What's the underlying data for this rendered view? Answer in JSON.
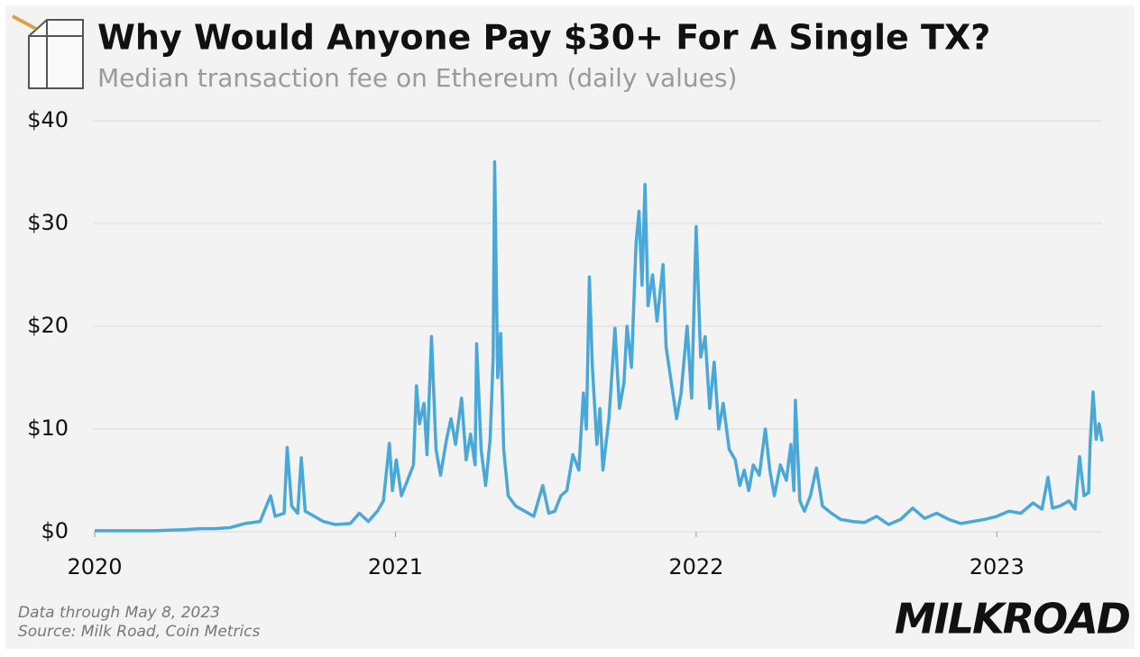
{
  "chart_data": {
    "type": "line",
    "title": "Why Would Anyone Pay $30+ For A Single TX?",
    "subtitle": "Median transaction fee on Ethereum (daily values)",
    "notes": [
      "Data through May 8, 2023",
      "Source: Milk Road, Coin Metrics"
    ],
    "brand": "MILKROAD",
    "xlim": [
      2020,
      2023.35
    ],
    "xticks": [
      2020,
      2021,
      2022,
      2023
    ],
    "ylim": [
      0,
      40
    ],
    "yticks": [
      {
        "value": 0,
        "label": "$0"
      },
      {
        "value": 10,
        "label": "$10"
      },
      {
        "value": 20,
        "label": "$20"
      },
      {
        "value": 30,
        "label": "$30"
      },
      {
        "value": 40,
        "label": "$40"
      }
    ],
    "grid": true,
    "x": [
      2020.0,
      2020.05,
      2020.1,
      2020.15,
      2020.2,
      2020.25,
      2020.3,
      2020.35,
      2020.4,
      2020.45,
      2020.5,
      2020.55,
      2020.585,
      2020.6,
      2020.63,
      2020.64,
      2020.655,
      2020.675,
      2020.687,
      2020.7,
      2020.73,
      2020.76,
      2020.8,
      2020.85,
      2020.88,
      2020.91,
      2020.94,
      2020.96,
      2020.98,
      2020.99,
      2021.003,
      2021.02,
      2021.04,
      2021.06,
      2021.07,
      2021.08,
      2021.095,
      2021.105,
      2021.12,
      2021.135,
      2021.15,
      2021.17,
      2021.185,
      2021.2,
      2021.22,
      2021.235,
      2021.25,
      2021.265,
      2021.27,
      2021.285,
      2021.3,
      2021.315,
      2021.325,
      2021.33,
      2021.34,
      2021.35,
      2021.36,
      2021.375,
      2021.4,
      2021.43,
      2021.46,
      2021.49,
      2021.51,
      2021.53,
      2021.55,
      2021.57,
      2021.59,
      2021.61,
      2021.625,
      2021.635,
      2021.645,
      2021.655,
      2021.67,
      2021.68,
      2021.69,
      2021.71,
      2021.73,
      2021.745,
      2021.76,
      2021.77,
      2021.785,
      2021.8,
      2021.81,
      2021.82,
      2021.83,
      2021.84,
      2021.855,
      2021.87,
      2021.89,
      2021.9,
      2021.92,
      2021.935,
      2021.95,
      2021.97,
      2021.985,
      2022.0,
      2022.015,
      2022.03,
      2022.045,
      2022.06,
      2022.075,
      2022.09,
      2022.11,
      2022.13,
      2022.145,
      2022.16,
      2022.175,
      2022.19,
      2022.21,
      2022.23,
      2022.245,
      2022.26,
      2022.28,
      2022.3,
      2022.315,
      2022.325,
      2022.33,
      2022.345,
      2022.36,
      2022.38,
      2022.4,
      2022.42,
      2022.45,
      2022.48,
      2022.52,
      2022.56,
      2022.6,
      2022.64,
      2022.68,
      2022.72,
      2022.76,
      2022.8,
      2022.84,
      2022.88,
      2022.92,
      2022.96,
      2023.0,
      2023.04,
      2023.08,
      2023.12,
      2023.15,
      2023.17,
      2023.185,
      2023.21,
      2023.24,
      2023.26,
      2023.275,
      2023.29,
      2023.305,
      2023.31,
      2023.32,
      2023.33,
      2023.34,
      2023.35
    ],
    "series": [
      {
        "name": "Median transaction fee",
        "color": "#4aa8d8",
        "values": [
          0.1,
          0.1,
          0.1,
          0.1,
          0.1,
          0.15,
          0.2,
          0.3,
          0.3,
          0.4,
          0.8,
          1.0,
          3.5,
          1.5,
          1.8,
          8.2,
          2.5,
          1.8,
          7.2,
          2.0,
          1.5,
          1.0,
          0.7,
          0.8,
          1.8,
          1.0,
          2.0,
          3.0,
          8.6,
          4.0,
          7.0,
          3.5,
          5.0,
          6.5,
          14.2,
          10.5,
          12.5,
          7.5,
          19.0,
          8.0,
          5.5,
          9.0,
          11.0,
          8.5,
          13.0,
          7.0,
          9.5,
          6.5,
          18.3,
          8.0,
          4.5,
          9.0,
          17.0,
          36.0,
          15.0,
          19.3,
          8.0,
          3.5,
          2.5,
          2.0,
          1.5,
          4.5,
          1.8,
          2.0,
          3.5,
          4.0,
          7.5,
          6.0,
          13.5,
          10.0,
          24.8,
          16.0,
          8.5,
          12.0,
          6.0,
          11.0,
          19.8,
          12.0,
          14.5,
          20.0,
          16.0,
          28.0,
          31.2,
          24.0,
          33.8,
          22.0,
          25.0,
          20.5,
          26.0,
          18.0,
          14.0,
          11.0,
          13.5,
          20.0,
          13.0,
          29.7,
          17.0,
          19.0,
          12.0,
          16.5,
          10.0,
          12.5,
          8.0,
          7.0,
          4.5,
          6.0,
          4.0,
          6.5,
          5.5,
          10.0,
          6.0,
          3.5,
          6.5,
          5.0,
          8.5,
          4.0,
          12.8,
          3.0,
          2.0,
          3.5,
          6.2,
          2.5,
          1.8,
          1.2,
          1.0,
          0.9,
          1.5,
          0.7,
          1.2,
          2.3,
          1.3,
          1.8,
          1.2,
          0.8,
          1.0,
          1.2,
          1.5,
          2.0,
          1.8,
          2.8,
          2.2,
          5.3,
          2.3,
          2.5,
          3.0,
          2.2,
          7.3,
          3.5,
          3.8,
          8.5,
          13.6,
          9.0,
          10.5,
          8.8
        ]
      }
    ]
  }
}
